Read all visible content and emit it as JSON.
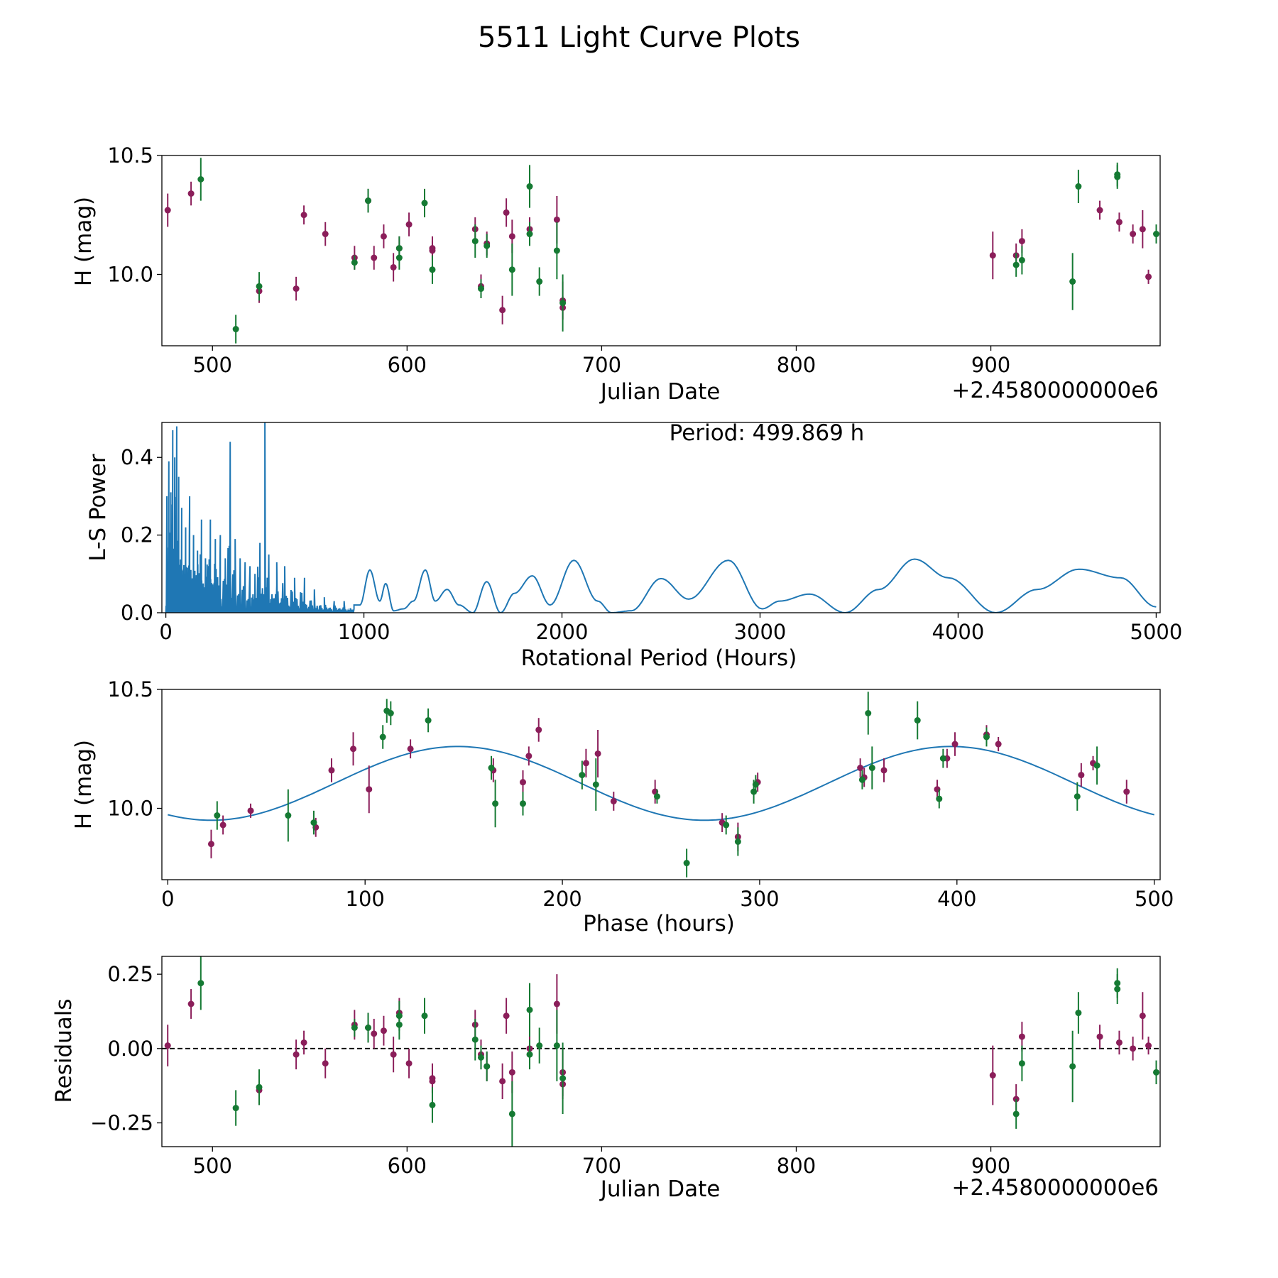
{
  "figure": {
    "title": "5511 Light Curve Plots",
    "colors": {
      "purple": "#8b1e5a",
      "green": "#157a33",
      "line": "#1f77b4"
    }
  },
  "chart_data": [
    {
      "id": "lightcurve",
      "type": "scatter",
      "title": "",
      "xlabel": "Julian Date",
      "ylabel": "H (mag)",
      "offset_text": "+2.4580000000e6",
      "xlim": [
        474,
        987
      ],
      "ylim": [
        9.7,
        10.5
      ],
      "xticks": [
        500,
        600,
        700,
        800,
        900
      ],
      "xtick_labels": [
        "500",
        "600",
        "700",
        "800",
        "900"
      ],
      "yticks": [
        10.0,
        10.5
      ],
      "ytick_labels": [
        "10.0",
        "10.5"
      ],
      "series": [
        {
          "name": "purple",
          "color": "#8b1e5a",
          "x": [
            477,
            489,
            524,
            543,
            547,
            558,
            573,
            580,
            583,
            588,
            593,
            596,
            601,
            613,
            613,
            635,
            638,
            641,
            649,
            651,
            654,
            663,
            677,
            680,
            680,
            901,
            913,
            916,
            956,
            966,
            973,
            978,
            981
          ],
          "y": [
            10.27,
            10.34,
            9.93,
            9.94,
            10.25,
            10.17,
            10.07,
            10.31,
            10.07,
            10.16,
            10.03,
            10.11,
            10.21,
            10.11,
            10.1,
            10.19,
            9.95,
            10.13,
            9.85,
            10.26,
            10.16,
            10.19,
            10.23,
            9.89,
            9.86,
            10.08,
            10.08,
            10.14,
            10.27,
            10.22,
            10.17,
            10.19,
            9.99
          ],
          "err": [
            0.07,
            0.05,
            0.05,
            0.05,
            0.04,
            0.05,
            0.05,
            0.05,
            0.05,
            0.05,
            0.06,
            0.05,
            0.05,
            0.05,
            0.04,
            0.05,
            0.05,
            0.05,
            0.06,
            0.06,
            0.07,
            0.05,
            0.1,
            0.08,
            0.05,
            0.1,
            0.05,
            0.05,
            0.04,
            0.04,
            0.04,
            0.08,
            0.03
          ]
        },
        {
          "name": "green",
          "color": "#157a33",
          "x": [
            494,
            512,
            524,
            573,
            580,
            596,
            596,
            609,
            613,
            635,
            638,
            641,
            654,
            663,
            663,
            668,
            677,
            680,
            913,
            916,
            942,
            945,
            965,
            965,
            985
          ],
          "y": [
            10.4,
            9.77,
            9.95,
            10.05,
            10.31,
            10.07,
            10.11,
            10.3,
            10.02,
            10.14,
            9.94,
            10.12,
            10.02,
            10.37,
            10.17,
            9.97,
            10.1,
            9.88,
            10.04,
            10.06,
            9.97,
            10.37,
            10.42,
            10.41,
            10.17
          ],
          "err": [
            0.09,
            0.06,
            0.06,
            0.03,
            0.05,
            0.05,
            0.05,
            0.06,
            0.06,
            0.07,
            0.04,
            0.05,
            0.11,
            0.09,
            0.05,
            0.06,
            0.12,
            0.12,
            0.05,
            0.06,
            0.12,
            0.07,
            0.05,
            0.05,
            0.04
          ]
        }
      ]
    },
    {
      "id": "periodogram",
      "type": "line",
      "title": "",
      "xlabel": "Rotational Period (Hours)",
      "ylabel": "L-S Power",
      "annotation": "Period: 499.869 h",
      "xlim": [
        -20,
        5020
      ],
      "ylim": [
        0.0,
        0.49
      ],
      "xticks": [
        0,
        1000,
        2000,
        3000,
        4000,
        5000
      ],
      "xtick_labels": [
        "0",
        "1000",
        "2000",
        "3000",
        "4000",
        "5000"
      ],
      "yticks": [
        0.0,
        0.2,
        0.4
      ],
      "ytick_labels": [
        "0.0",
        "0.2",
        "0.4"
      ],
      "spikes_x": [
        5,
        15,
        25,
        35,
        45,
        55,
        65,
        80,
        100,
        120,
        140,
        160,
        180,
        200,
        225,
        250,
        275,
        300,
        325,
        350,
        375,
        400,
        425,
        450,
        475,
        520,
        560,
        600,
        650,
        700,
        750,
        800,
        850,
        900,
        950
      ],
      "spikes_y": [
        0.3,
        0.39,
        0.31,
        0.47,
        0.4,
        0.48,
        0.35,
        0.27,
        0.22,
        0.3,
        0.2,
        0.16,
        0.24,
        0.14,
        0.24,
        0.19,
        0.2,
        0.14,
        0.44,
        0.19,
        0.14,
        0.13,
        0.12,
        0.1,
        0.18,
        0.15,
        0.13,
        0.12,
        0.09,
        0.09,
        0.06,
        0.04,
        0.03,
        0.03,
        0.02
      ],
      "peak_x": 500,
      "peak_y": 0.49,
      "smooth_x": [
        980,
        1030,
        1080,
        1110,
        1150,
        1200,
        1250,
        1310,
        1360,
        1420,
        1480,
        1550,
        1620,
        1690,
        1760,
        1850,
        1940,
        2060,
        2180,
        2250,
        2350,
        2500,
        2640,
        2840,
        3010,
        3100,
        3250,
        3430,
        3600,
        3780,
        3950,
        4190,
        4400,
        4610,
        4820,
        5000
      ],
      "smooth_y": [
        0.02,
        0.11,
        0.03,
        0.075,
        0.005,
        0.01,
        0.03,
        0.11,
        0.03,
        0.06,
        0.02,
        0.0,
        0.08,
        0.0,
        0.05,
        0.095,
        0.02,
        0.135,
        0.03,
        0.0,
        0.005,
        0.088,
        0.035,
        0.135,
        0.01,
        0.03,
        0.048,
        0.0,
        0.06,
        0.138,
        0.09,
        0.0,
        0.06,
        0.112,
        0.09,
        0.015
      ]
    },
    {
      "id": "phase",
      "type": "scatter",
      "title": "",
      "xlabel": "Phase (hours)",
      "ylabel": "H (mag)",
      "xlim": [
        -3,
        503
      ],
      "ylim": [
        9.7,
        10.5
      ],
      "xticks": [
        0,
        100,
        200,
        300,
        400,
        500
      ],
      "xtick_labels": [
        "0",
        "100",
        "200",
        "300",
        "400",
        "500"
      ],
      "yticks": [
        10.0,
        10.5
      ],
      "ytick_labels": [
        "10.0",
        "10.5"
      ],
      "fit": {
        "mean": 10.105,
        "amplitude": 0.155,
        "period": 250,
        "phase_min": 22,
        "xrange": [
          0,
          500
        ]
      },
      "series": [
        {
          "name": "purple",
          "color": "#8b1e5a",
          "x": [
            22,
            28,
            42,
            75,
            83,
            94,
            102,
            123,
            165,
            180,
            183,
            188,
            212,
            218,
            226,
            247,
            281,
            289,
            299,
            351,
            353,
            363,
            390,
            395,
            399,
            415,
            421,
            463,
            469,
            486
          ],
          "y": [
            9.85,
            9.93,
            9.99,
            9.92,
            10.16,
            10.25,
            10.08,
            10.25,
            10.16,
            10.11,
            10.22,
            10.33,
            10.19,
            10.23,
            10.03,
            10.07,
            9.94,
            9.88,
            10.11,
            10.17,
            10.13,
            10.16,
            10.08,
            10.21,
            10.27,
            10.31,
            10.27,
            10.14,
            10.19,
            10.07
          ],
          "err": [
            0.06,
            0.04,
            0.03,
            0.04,
            0.05,
            0.07,
            0.1,
            0.04,
            0.05,
            0.05,
            0.04,
            0.05,
            0.06,
            0.1,
            0.04,
            0.05,
            0.04,
            0.06,
            0.04,
            0.04,
            0.04,
            0.05,
            0.04,
            0.04,
            0.05,
            0.04,
            0.03,
            0.05,
            0.03,
            0.05
          ]
        },
        {
          "name": "green",
          "color": "#157a33",
          "x": [
            25,
            61,
            74,
            109,
            111,
            113,
            132,
            164,
            166,
            180,
            210,
            217,
            248,
            263,
            283,
            289,
            297,
            298,
            352,
            355,
            357,
            380,
            391,
            393,
            415,
            461,
            471
          ],
          "y": [
            9.97,
            9.97,
            9.94,
            10.3,
            10.41,
            10.4,
            10.37,
            10.17,
            10.02,
            10.02,
            10.14,
            10.1,
            10.05,
            9.77,
            9.93,
            9.86,
            10.07,
            10.1,
            10.12,
            10.4,
            10.17,
            10.37,
            10.04,
            10.21,
            10.3,
            10.05,
            10.18
          ],
          "err": [
            0.06,
            0.11,
            0.05,
            0.05,
            0.05,
            0.05,
            0.05,
            0.05,
            0.1,
            0.05,
            0.06,
            0.11,
            0.03,
            0.06,
            0.04,
            0.06,
            0.05,
            0.04,
            0.04,
            0.09,
            0.09,
            0.08,
            0.04,
            0.04,
            0.04,
            0.06,
            0.08
          ]
        }
      ]
    },
    {
      "id": "residuals",
      "type": "scatter",
      "title": "",
      "xlabel": "Julian Date",
      "ylabel": "Residuals",
      "offset_text": "+2.4580000000e6",
      "xlim": [
        474,
        987
      ],
      "ylim": [
        -0.33,
        0.31
      ],
      "xticks": [
        500,
        600,
        700,
        800,
        900
      ],
      "xtick_labels": [
        "500",
        "600",
        "700",
        "800",
        "900"
      ],
      "yticks": [
        -0.25,
        0.0,
        0.25
      ],
      "ytick_labels": [
        "−0.25",
        "0.00",
        "0.25"
      ],
      "reference_line": 0.0,
      "series": [
        {
          "name": "purple",
          "color": "#8b1e5a",
          "x": [
            477,
            489,
            524,
            543,
            547,
            558,
            573,
            580,
            583,
            588,
            593,
            596,
            601,
            613,
            613,
            635,
            638,
            641,
            649,
            651,
            654,
            663,
            677,
            680,
            680,
            901,
            913,
            916,
            956,
            966,
            973,
            978,
            981
          ],
          "y": [
            0.01,
            0.15,
            -0.14,
            -0.02,
            0.02,
            -0.05,
            0.08,
            0.07,
            0.05,
            0.06,
            -0.02,
            0.12,
            -0.05,
            -0.1,
            -0.11,
            0.08,
            -0.02,
            -0.06,
            -0.11,
            0.11,
            -0.08,
            0.0,
            0.15,
            -0.08,
            -0.12,
            -0.09,
            -0.17,
            0.04,
            0.04,
            0.02,
            0.0,
            0.11,
            0.01
          ],
          "err": [
            0.07,
            0.05,
            0.05,
            0.05,
            0.04,
            0.05,
            0.05,
            0.05,
            0.05,
            0.05,
            0.06,
            0.05,
            0.05,
            0.05,
            0.04,
            0.05,
            0.05,
            0.05,
            0.06,
            0.06,
            0.07,
            0.05,
            0.1,
            0.08,
            0.05,
            0.1,
            0.05,
            0.05,
            0.04,
            0.04,
            0.04,
            0.08,
            0.03
          ]
        },
        {
          "name": "green",
          "color": "#157a33",
          "x": [
            494,
            512,
            524,
            573,
            580,
            596,
            596,
            609,
            613,
            635,
            638,
            641,
            654,
            663,
            663,
            668,
            677,
            680,
            913,
            916,
            942,
            945,
            965,
            965,
            985
          ],
          "y": [
            0.22,
            -0.2,
            -0.13,
            0.07,
            0.07,
            0.11,
            0.08,
            0.11,
            -0.19,
            0.03,
            -0.03,
            -0.06,
            -0.22,
            0.13,
            -0.02,
            0.01,
            0.01,
            -0.1,
            -0.22,
            -0.05,
            -0.06,
            0.12,
            0.22,
            0.2,
            -0.08
          ],
          "err": [
            0.09,
            0.06,
            0.06,
            0.03,
            0.05,
            0.05,
            0.05,
            0.06,
            0.06,
            0.07,
            0.04,
            0.05,
            0.11,
            0.09,
            0.05,
            0.06,
            0.12,
            0.12,
            0.05,
            0.06,
            0.12,
            0.07,
            0.05,
            0.05,
            0.04
          ]
        }
      ]
    }
  ]
}
